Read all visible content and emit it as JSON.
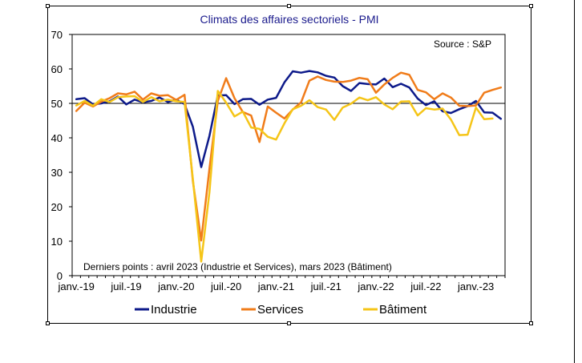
{
  "chart_data": {
    "type": "line",
    "title": "Climats des affaires sectoriels  - PMI",
    "source_note": "Source : S&P",
    "annotation": "Derniers points : avril 2023 (Industrie et Services), mars 2023 (Bâtiment)",
    "x_start": "2019-01",
    "x_tick_labels": [
      "janv.-19",
      "juil.-19",
      "janv.-20",
      "juil.-20",
      "janv.-21",
      "juil.-21",
      "janv.-22",
      "juil.-22",
      "janv.-23"
    ],
    "ylim": [
      0,
      70
    ],
    "y_ticks": [
      0,
      10,
      20,
      30,
      40,
      50,
      60,
      70
    ],
    "reference_line": 50,
    "legend_position": "bottom",
    "series": [
      {
        "name": "Industrie",
        "color": "#0d1a8a",
        "values": [
          51.2,
          51.5,
          49.7,
          50.0,
          50.6,
          52.0,
          49.7,
          51.1,
          50.3,
          50.7,
          51.7,
          50.4,
          51.1,
          49.8,
          43.2,
          31.5,
          40.6,
          52.3,
          52.4,
          49.8,
          51.2,
          51.3,
          49.6,
          51.1,
          51.6,
          56.1,
          59.3,
          58.9,
          59.4,
          59.0,
          58.0,
          57.5,
          55.0,
          53.6,
          55.9,
          55.6,
          55.5,
          57.2,
          54.7,
          55.7,
          54.6,
          51.4,
          49.5,
          50.6,
          47.7,
          47.2,
          48.3,
          49.2,
          50.7,
          47.4,
          47.3,
          45.5
        ]
      },
      {
        "name": "Services",
        "color": "#f07c1a",
        "values": [
          47.8,
          50.2,
          49.1,
          50.5,
          51.5,
          52.9,
          52.6,
          53.4,
          51.1,
          52.9,
          52.2,
          52.4,
          51.0,
          52.5,
          27.4,
          10.2,
          31.1,
          50.7,
          57.3,
          51.5,
          47.5,
          46.5,
          38.8,
          49.1,
          47.3,
          45.6,
          48.2,
          50.3,
          56.6,
          57.8,
          56.8,
          56.3,
          56.2,
          56.6,
          57.4,
          57.0,
          53.1,
          55.5,
          57.4,
          58.9,
          58.3,
          53.9,
          53.2,
          51.2,
          52.9,
          51.7,
          49.3,
          49.2,
          49.4,
          53.1,
          53.9,
          54.6
        ]
      },
      {
        "name": "Bâtiment",
        "color": "#f5c518",
        "values": [
          49.4,
          50.7,
          49.3,
          51.2,
          50.4,
          51.8,
          52.0,
          52.1,
          50.4,
          51.8,
          50.6,
          51.1,
          50.6,
          50.4,
          28.1,
          4.1,
          24.3,
          53.6,
          50.2,
          46.2,
          47.6,
          43.0,
          42.6,
          40.3,
          39.5,
          44.2,
          48.3,
          49.3,
          50.9,
          48.9,
          48.2,
          45.2,
          48.8,
          49.9,
          51.7,
          50.9,
          51.8,
          49.7,
          48.3,
          50.5,
          50.6,
          46.5,
          48.6,
          48.2,
          48.5,
          45.3,
          40.8,
          40.9,
          48.8,
          45.4,
          45.6
        ]
      }
    ]
  }
}
